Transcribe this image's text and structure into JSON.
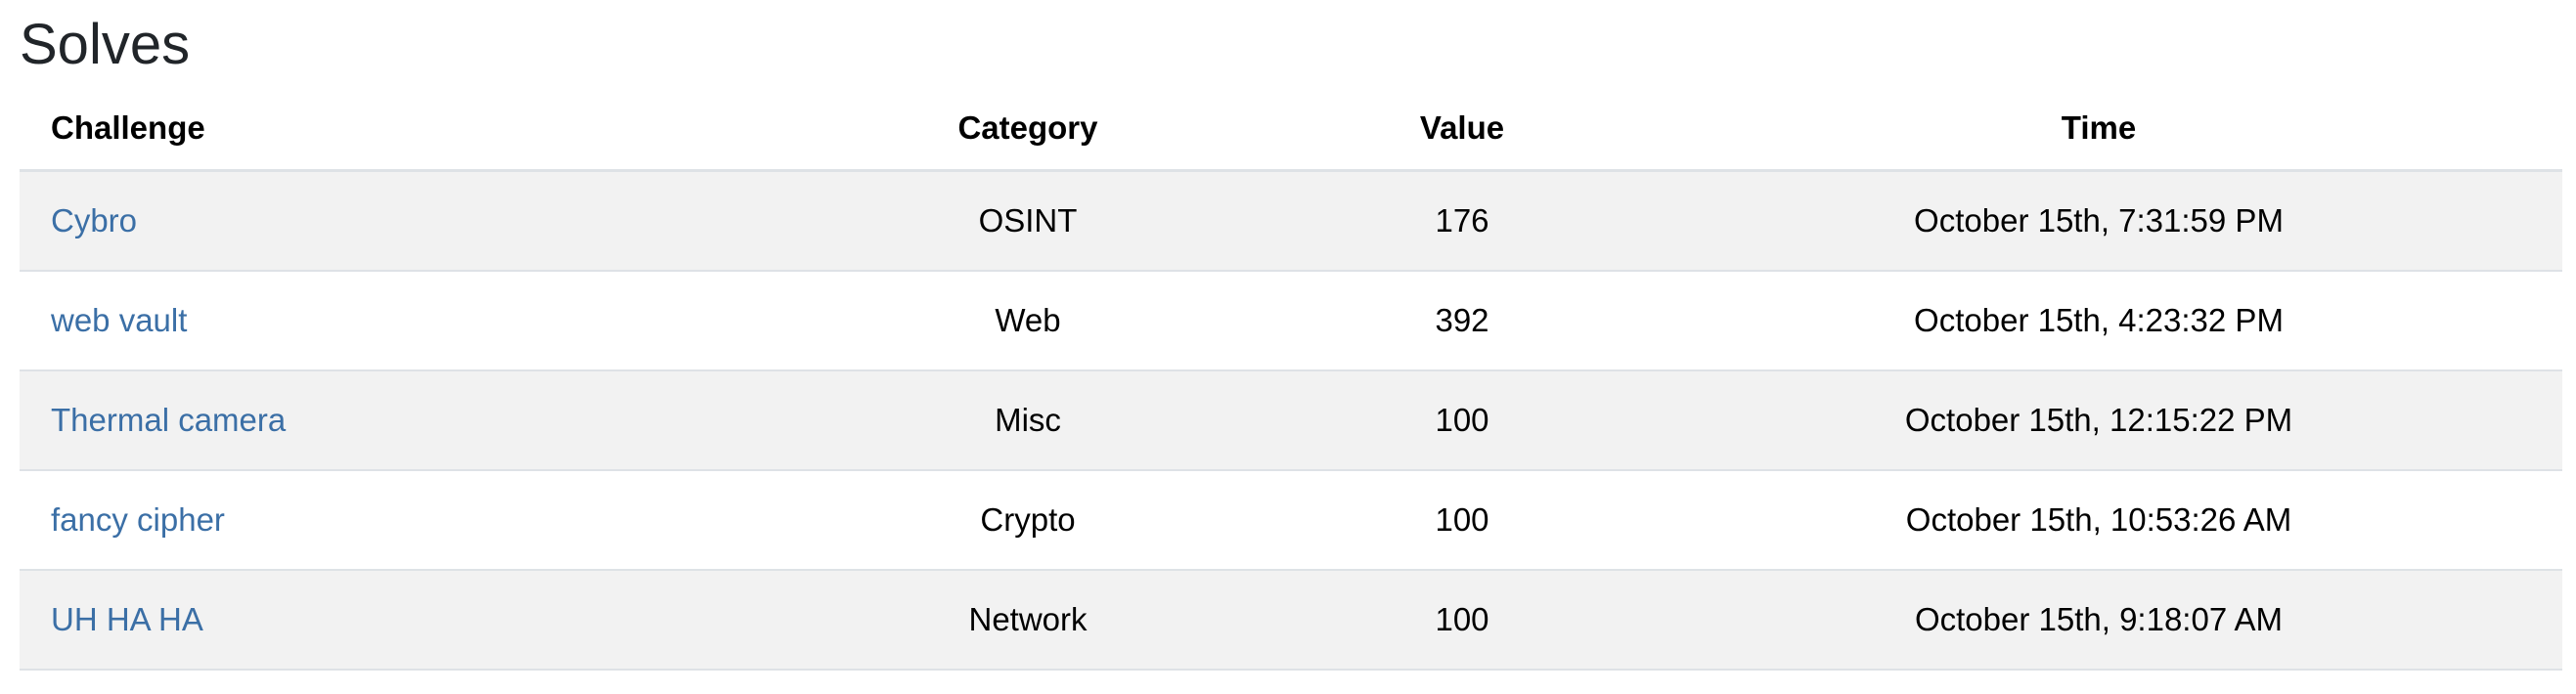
{
  "page": {
    "title": "Solves"
  },
  "table": {
    "headers": {
      "challenge": "Challenge",
      "category": "Category",
      "value": "Value",
      "time": "Time"
    },
    "rows": [
      {
        "challenge": "Cybro",
        "category": "OSINT",
        "value": "176",
        "time": "October 15th, 7:31:59 PM"
      },
      {
        "challenge": "web vault",
        "category": "Web",
        "value": "392",
        "time": "October 15th, 4:23:32 PM"
      },
      {
        "challenge": "Thermal camera",
        "category": "Misc",
        "value": "100",
        "time": "October 15th, 12:15:22 PM"
      },
      {
        "challenge": "fancy cipher",
        "category": "Crypto",
        "value": "100",
        "time": "October 15th, 10:53:26 AM"
      },
      {
        "challenge": "UH HA HA",
        "category": "Network",
        "value": "100",
        "time": "October 15th, 9:18:07 AM"
      }
    ]
  },
  "colors": {
    "link": "#3b6fa6",
    "stripe": "#f2f2f2",
    "border": "#dee2e6"
  }
}
